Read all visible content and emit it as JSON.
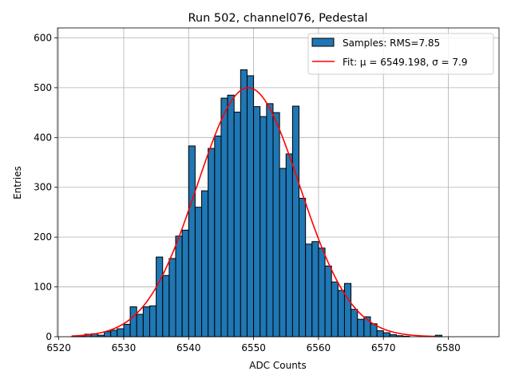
{
  "chart_data": {
    "type": "bar",
    "title": "Run 502, channel076, Pedestal",
    "xlabel": "ADC Counts",
    "ylabel": "Entries",
    "xlim": [
      6519.8,
      6587.8
    ],
    "ylim": [
      0,
      620
    ],
    "grid": true,
    "legend_position": "top-right",
    "xticks": [
      6520,
      6530,
      6540,
      6550,
      6560,
      6570,
      6580
    ],
    "yticks": [
      0,
      100,
      200,
      300,
      400,
      500,
      600
    ],
    "colors": {
      "bar": "#1f77b4",
      "edge": "#000000",
      "fit": "#ff0000",
      "grid": "#b0b0b0"
    },
    "legend": {
      "samples_label": "Samples: RMS=7.85",
      "fit_label": "Fit: μ = 6549.198, σ = 7.9"
    },
    "histogram": {
      "bin_start": 6522,
      "bin_width": 1,
      "values": [
        1,
        2,
        5,
        6,
        3,
        10,
        13,
        16,
        25,
        60,
        45,
        60,
        62,
        160,
        123,
        157,
        202,
        214,
        383,
        260,
        293,
        378,
        403,
        479,
        485,
        451,
        536,
        524,
        462,
        442,
        468,
        450,
        338,
        367,
        463,
        278,
        186,
        191,
        178,
        142,
        110,
        93,
        107,
        55,
        35,
        40,
        26,
        12,
        8,
        4,
        2,
        1,
        0,
        0,
        0,
        0,
        3
      ]
    },
    "fit": {
      "type": "gaussian",
      "mu": 6549.198,
      "sigma": 7.9,
      "amplitude": 500,
      "x_range": [
        6522,
        6578
      ]
    }
  }
}
